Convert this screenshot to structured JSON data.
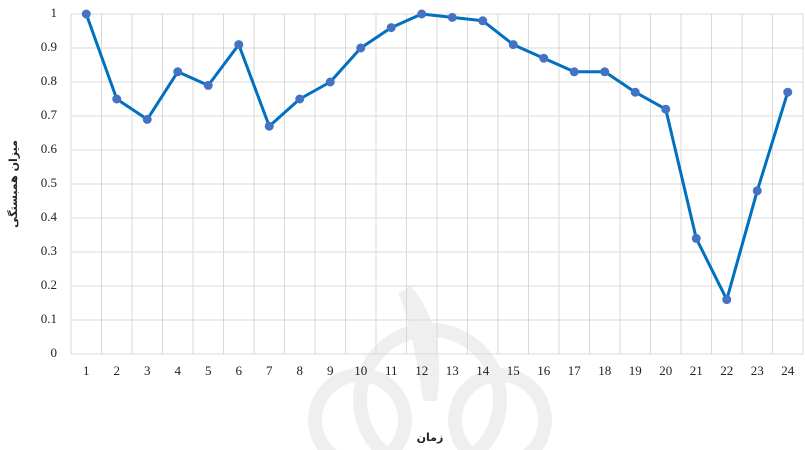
{
  "chart_data": {
    "type": "line",
    "x_label": "زمان",
    "y_label": "میزان همبستگی",
    "categories": [
      "1",
      "2",
      "3",
      "4",
      "5",
      "6",
      "7",
      "8",
      "9",
      "10",
      "11",
      "12",
      "13",
      "14",
      "15",
      "16",
      "17",
      "18",
      "19",
      "20",
      "21",
      "22",
      "23",
      "24"
    ],
    "series": [
      {
        "color": "#0070c0",
        "marker_color": "#4472c4",
        "values": [
          1.0,
          0.75,
          0.69,
          0.83,
          0.79,
          0.91,
          0.67,
          0.75,
          0.8,
          0.9,
          0.96,
          1.0,
          0.99,
          0.98,
          0.91,
          0.87,
          0.83,
          0.83,
          0.77,
          0.72,
          0.34,
          0.16,
          0.48,
          0.77
        ]
      }
    ],
    "ylim": [
      0,
      1
    ],
    "yticks": [
      0,
      0.1,
      0.2,
      0.3,
      0.4,
      0.5,
      0.6,
      0.7,
      0.8,
      0.9,
      1
    ],
    "grid": true
  }
}
